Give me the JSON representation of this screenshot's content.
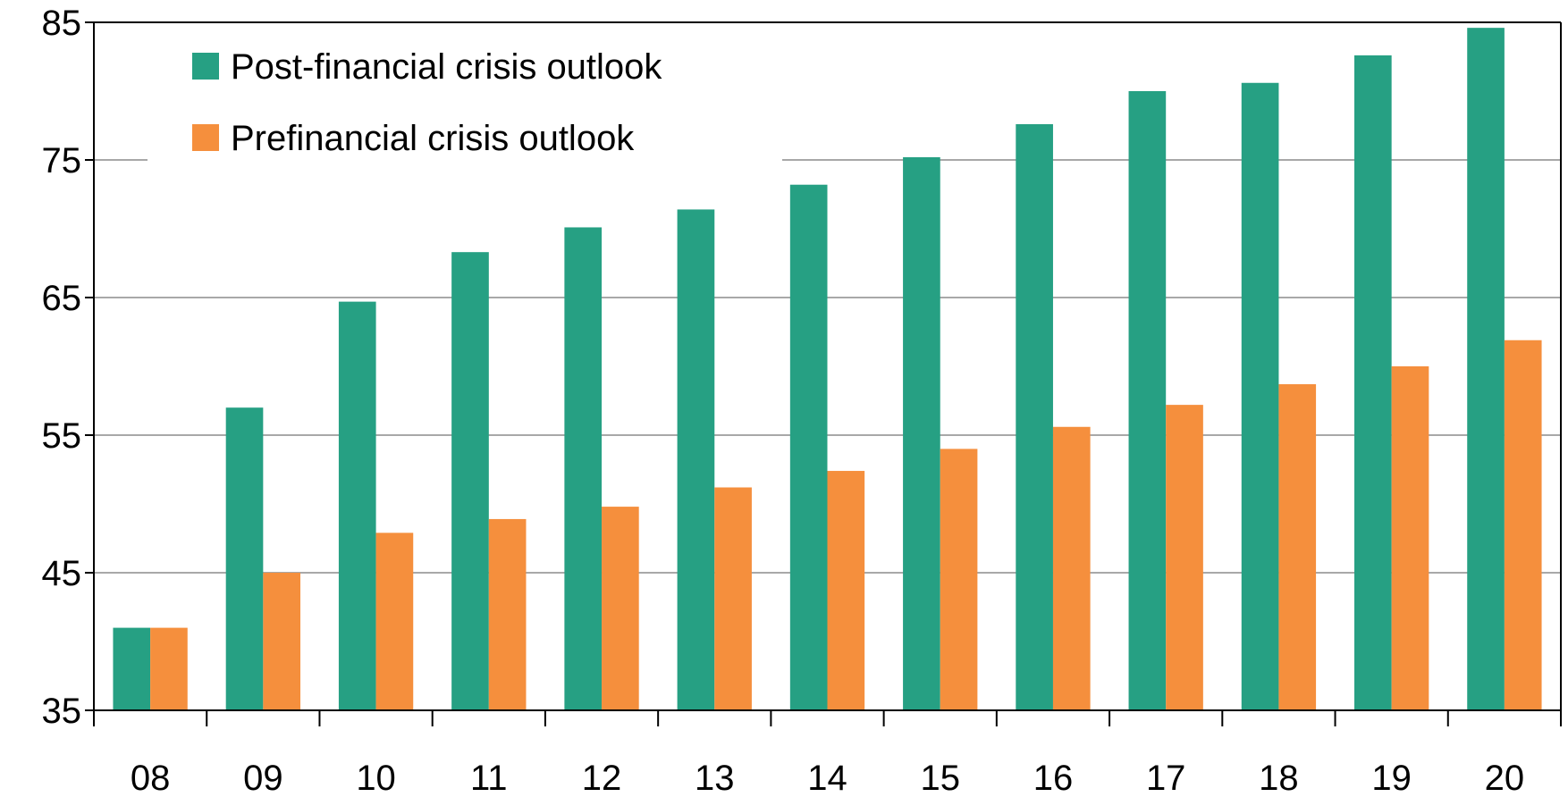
{
  "chart_data": {
    "type": "bar",
    "categories": [
      "08",
      "09",
      "10",
      "11",
      "12",
      "13",
      "14",
      "15",
      "16",
      "17",
      "18",
      "19",
      "20"
    ],
    "series": [
      {
        "name": "Post-financial crisis outlook",
        "color": "#26a083",
        "values": [
          41.0,
          57.0,
          64.7,
          68.3,
          70.1,
          71.4,
          73.2,
          75.2,
          77.6,
          80.0,
          80.6,
          82.6,
          84.6
        ]
      },
      {
        "name": "Prefinancial crisis outlook",
        "color": "#f58f3d",
        "values": [
          41.0,
          45.0,
          47.9,
          48.9,
          49.8,
          51.2,
          52.4,
          54.0,
          55.6,
          57.2,
          58.7,
          60.0,
          61.9
        ]
      }
    ],
    "title": "",
    "xlabel": "",
    "ylabel": "",
    "ylim": [
      35,
      85
    ],
    "yticks": [
      "35",
      "45",
      "55",
      "65",
      "75",
      "85"
    ],
    "grid": true,
    "legend_position": "top-left"
  }
}
